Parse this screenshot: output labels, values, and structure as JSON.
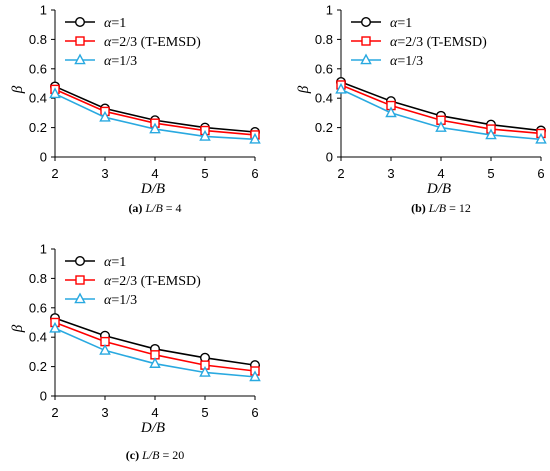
{
  "legend_symbol": "α",
  "chart_data": [
    {
      "type": "line",
      "caption_letter": "(a)",
      "caption_text": "L/B = 4",
      "xlabel": "D/B",
      "ylabel": "β",
      "xlim": [
        2,
        6
      ],
      "ylim": [
        0,
        1
      ],
      "xticks": [
        2,
        3,
        4,
        5,
        6
      ],
      "yticks": [
        0,
        0.2,
        0.4,
        0.6,
        0.8,
        1
      ],
      "ytick_labels": [
        "0",
        "0.2",
        "0.4",
        "0.6",
        "0.8",
        "1"
      ],
      "legend_position": "top-right",
      "grid": false,
      "x": [
        2,
        3,
        4,
        5,
        6
      ],
      "series": [
        {
          "name_suffix": "=1",
          "color": "#000000",
          "marker": "circle",
          "values": [
            0.48,
            0.33,
            0.25,
            0.2,
            0.17
          ]
        },
        {
          "name_suffix": "=2/3 (T-EMSD)",
          "color": "#ff0000",
          "marker": "square",
          "values": [
            0.46,
            0.31,
            0.23,
            0.18,
            0.15
          ]
        },
        {
          "name_suffix": "=1/3",
          "color": "#29a9e0",
          "marker": "triangle",
          "values": [
            0.43,
            0.27,
            0.19,
            0.14,
            0.12
          ]
        }
      ]
    },
    {
      "type": "line",
      "caption_letter": "(b)",
      "caption_text": "L/B = 12",
      "xlabel": "D/B",
      "ylabel": "β",
      "xlim": [
        2,
        6
      ],
      "ylim": [
        0,
        1
      ],
      "xticks": [
        2,
        3,
        4,
        5,
        6
      ],
      "yticks": [
        0,
        0.2,
        0.4,
        0.6,
        0.8,
        1
      ],
      "ytick_labels": [
        "0",
        "0.2",
        "0.4",
        "0.6",
        "0.8",
        "1"
      ],
      "legend_position": "top-right",
      "grid": false,
      "x": [
        2,
        3,
        4,
        5,
        6
      ],
      "series": [
        {
          "name_suffix": "=1",
          "color": "#000000",
          "marker": "circle",
          "values": [
            0.51,
            0.38,
            0.28,
            0.22,
            0.18
          ]
        },
        {
          "name_suffix": "=2/3 (T-EMSD)",
          "color": "#ff0000",
          "marker": "square",
          "values": [
            0.49,
            0.35,
            0.25,
            0.19,
            0.16
          ]
        },
        {
          "name_suffix": "=1/3",
          "color": "#29a9e0",
          "marker": "triangle",
          "values": [
            0.46,
            0.3,
            0.2,
            0.15,
            0.12
          ]
        }
      ]
    },
    {
      "type": "line",
      "caption_letter": "(c)",
      "caption_text": "L/B = 20",
      "xlabel": "D/B",
      "ylabel": "β",
      "xlim": [
        2,
        6
      ],
      "ylim": [
        0,
        1
      ],
      "xticks": [
        2,
        3,
        4,
        5,
        6
      ],
      "yticks": [
        0,
        0.2,
        0.4,
        0.6,
        0.8,
        1
      ],
      "ytick_labels": [
        "0",
        "0.2",
        "0.4",
        "0.6",
        "0.8",
        "1"
      ],
      "legend_position": "top-right",
      "grid": false,
      "x": [
        2,
        3,
        4,
        5,
        6
      ],
      "series": [
        {
          "name_suffix": "=1",
          "color": "#000000",
          "marker": "circle",
          "values": [
            0.53,
            0.41,
            0.32,
            0.26,
            0.21
          ]
        },
        {
          "name_suffix": "=2/3 (T-EMSD)",
          "color": "#ff0000",
          "marker": "square",
          "values": [
            0.5,
            0.37,
            0.28,
            0.21,
            0.17
          ]
        },
        {
          "name_suffix": "=1/3",
          "color": "#29a9e0",
          "marker": "triangle",
          "values": [
            0.46,
            0.31,
            0.22,
            0.16,
            0.13
          ]
        }
      ]
    }
  ]
}
